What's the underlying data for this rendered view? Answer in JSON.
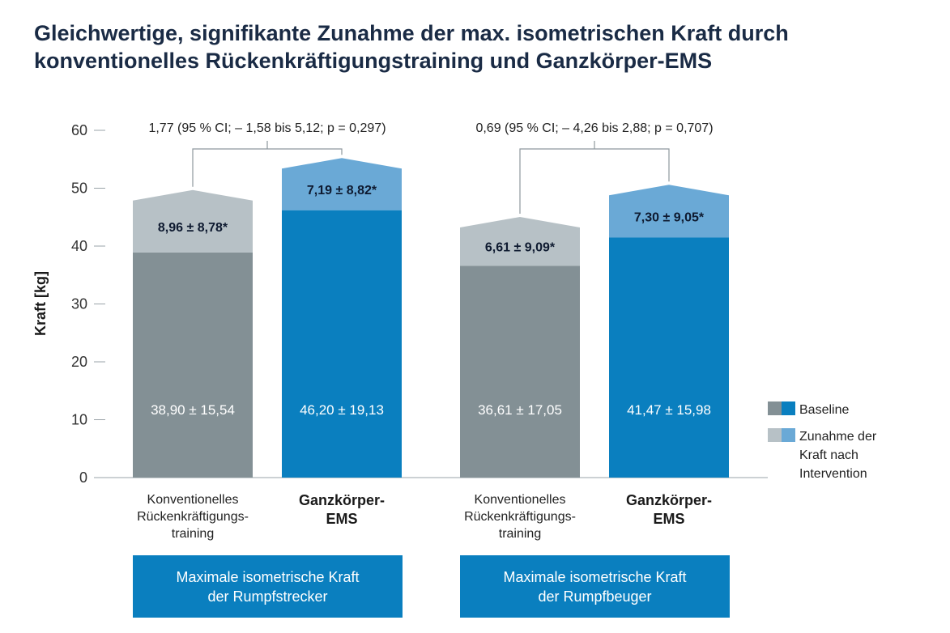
{
  "title": {
    "line1": "Gleichwertige, signifikante Zunahme der max. isometrischen Kraft durch",
    "line2": "konventionelles Rückenkräftigungstraining und Ganzkörper-EMS"
  },
  "colors": {
    "baseline_conv": "#839095",
    "increase_conv": "#b7c1c6",
    "baseline_ems": "#0a7fbf",
    "increase_ems": "#6aa9d6",
    "group_box": "#0a7fbf"
  },
  "chart_data": {
    "type": "bar",
    "stacked": true,
    "ylabel": "Kraft [kg]",
    "ylim": [
      0,
      60
    ],
    "yticks": [
      0,
      10,
      20,
      30,
      40,
      50,
      60
    ],
    "ytick_labels": [
      "0",
      "10",
      "20",
      "30",
      "40",
      "50",
      "60"
    ],
    "series": [
      {
        "name": "Baseline",
        "values": [
          38.9,
          46.2,
          36.61,
          41.47
        ]
      },
      {
        "name": "Zunahme der Kraft nach Intervention",
        "values": [
          8.96,
          7.19,
          6.61,
          7.3
        ]
      }
    ],
    "bars": [
      {
        "category": "Konventionelles Rückenkräftigungstraining",
        "group": 0,
        "kind": "conv",
        "label_lines": [
          "Konventionelles",
          "Rückenkräftigungs-",
          "training"
        ],
        "baseline": 38.9,
        "baseline_label": "38,90 ± 15,54",
        "increase": 8.96,
        "increase_label": "8,96 ± 8,78*"
      },
      {
        "category": "Ganzkörper-EMS",
        "group": 0,
        "kind": "ems",
        "label_lines": [
          "Ganzkörper-",
          "EMS"
        ],
        "baseline": 46.2,
        "baseline_label": "46,20 ± 19,13",
        "increase": 7.19,
        "increase_label": "7,19 ± 8,82*"
      },
      {
        "category": "Konventionelles Rückenkräftigungstraining",
        "group": 1,
        "kind": "conv",
        "label_lines": [
          "Konventionelles",
          "Rückenkräftigungs-",
          "training"
        ],
        "baseline": 36.61,
        "baseline_label": "36,61 ± 17,05",
        "increase": 6.61,
        "increase_label": "6,61 ± 9,09*"
      },
      {
        "category": "Ganzkörper-EMS",
        "group": 1,
        "kind": "ems",
        "label_lines": [
          "Ganzkörper-",
          "EMS"
        ],
        "baseline": 41.47,
        "baseline_label": "41,47 ± 15,98",
        "increase": 7.3,
        "increase_label": "7,30 ± 9,05*"
      }
    ],
    "comparisons": [
      {
        "group": 0,
        "label": "1,77 (95 % CI; – 1,58 bis 5,12; p = 0,297)"
      },
      {
        "group": 1,
        "label": "0,69 (95 % CI; – 4,26 bis 2,88; p = 0,707)"
      }
    ],
    "groups": [
      {
        "lines": [
          "Maximale isometrische Kraft",
          "der Rumpfstrecker"
        ]
      },
      {
        "lines": [
          "Maximale isometrische Kraft",
          "der Rumpfbeuger"
        ]
      }
    ],
    "legend": [
      {
        "label_lines": [
          "Baseline"
        ],
        "key": "baseline"
      },
      {
        "label_lines": [
          "Zunahme der",
          "Kraft nach",
          "Intervention"
        ],
        "key": "increase"
      }
    ],
    "legend_position": "right"
  }
}
